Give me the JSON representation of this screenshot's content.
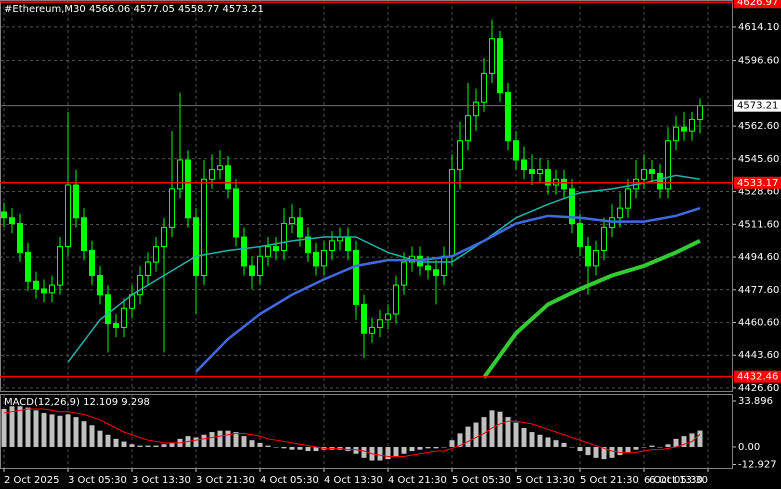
{
  "chart_data": {
    "type": "candlestick",
    "header": "#Ethereum,M30  4566.06 4577.05 4558.77 4573.21",
    "candle_color": "#00ff00",
    "open": [
      4518,
      4515,
      4512,
      4497,
      4482,
      4478,
      4476,
      4480,
      4500,
      4532,
      4515,
      4498,
      4485,
      4475,
      4460,
      4458,
      4468,
      4475,
      4485,
      4492,
      4500,
      4510,
      4530,
      4545,
      4515,
      4485,
      4535,
      4540,
      4542,
      4530,
      4505,
      4490,
      4485,
      4495,
      4500,
      4498,
      4512,
      4515,
      4505,
      4497,
      4490,
      4498,
      4503,
      4505,
      4498,
      4470,
      4455,
      4458,
      4462,
      4465,
      4480,
      4492,
      4495,
      4490,
      4488,
      4485,
      4495,
      4540,
      4555,
      4568,
      4575,
      4590,
      4608,
      4580,
      4555,
      4545,
      4540,
      4538,
      4540,
      4532,
      4535,
      4530,
      4512,
      4500,
      4490,
      4498,
      4510,
      4515,
      4520,
      4530,
      4535,
      4540,
      4538,
      4530,
      4555,
      4562,
      4560,
      4566.06
    ],
    "high": [
      4523,
      4520,
      4517,
      4502,
      4487,
      4483,
      4485,
      4505,
      4570,
      4540,
      4520,
      4503,
      4490,
      4480,
      4465,
      4473,
      4480,
      4490,
      4497,
      4505,
      4515,
      4560,
      4580,
      4550,
      4520,
      4545,
      4548,
      4550,
      4547,
      4535,
      4510,
      4495,
      4500,
      4505,
      4505,
      4520,
      4522,
      4520,
      4510,
      4502,
      4503,
      4508,
      4510,
      4510,
      4503,
      4475,
      4463,
      4467,
      4470,
      4485,
      4497,
      4500,
      4500,
      4495,
      4493,
      4500,
      4548,
      4565,
      4585,
      4582,
      4598,
      4618,
      4612,
      4585,
      4560,
      4552,
      4548,
      4546,
      4545,
      4540,
      4540,
      4535,
      4517,
      4505,
      4503,
      4515,
      4522,
      4528,
      4535,
      4545,
      4548,
      4545,
      4543,
      4562,
      4568,
      4570,
      4570,
      4577.05
    ],
    "low": [
      4510,
      4507,
      4492,
      4477,
      4473,
      4471,
      4471,
      4475,
      4495,
      4510,
      4493,
      4480,
      4470,
      4445,
      4453,
      4453,
      4463,
      4470,
      4480,
      4487,
      4445,
      4505,
      4525,
      4510,
      4465,
      4480,
      4530,
      4535,
      4525,
      4500,
      4485,
      4478,
      4480,
      4490,
      4493,
      4493,
      4507,
      4500,
      4492,
      4485,
      4485,
      4493,
      4498,
      4493,
      4462,
      4442,
      4450,
      4453,
      4457,
      4460,
      4475,
      4487,
      4485,
      4483,
      4470,
      4480,
      4490,
      4530,
      4550,
      4560,
      4570,
      4585,
      4575,
      4550,
      4540,
      4535,
      4532,
      4533,
      4527,
      4527,
      4525,
      4507,
      4495,
      4475,
      4485,
      4493,
      4505,
      4510,
      4515,
      4525,
      4530,
      4533,
      4525,
      4525,
      4550,
      4555,
      4555,
      4558.77
    ],
    "close": [
      4515,
      4512,
      4497,
      4482,
      4478,
      4476,
      4480,
      4500,
      4532,
      4515,
      4498,
      4485,
      4475,
      4460,
      4458,
      4468,
      4475,
      4485,
      4492,
      4500,
      4510,
      4530,
      4545,
      4515,
      4485,
      4535,
      4540,
      4542,
      4530,
      4505,
      4490,
      4485,
      4495,
      4500,
      4498,
      4512,
      4515,
      4505,
      4497,
      4490,
      4498,
      4503,
      4505,
      4498,
      4470,
      4455,
      4458,
      4462,
      4465,
      4480,
      4492,
      4495,
      4490,
      4488,
      4485,
      4495,
      4540,
      4555,
      4568,
      4575,
      4590,
      4608,
      4580,
      4555,
      4545,
      4540,
      4538,
      4540,
      4532,
      4535,
      4530,
      4512,
      4500,
      4490,
      4498,
      4510,
      4515,
      4520,
      4530,
      4535,
      4540,
      4538,
      4530,
      4555,
      4562,
      4560,
      4566.06,
      4573.21
    ],
    "moving_averages": [
      {
        "color": "#20b2aa",
        "x": [
          8,
          12,
          16,
          20,
          24,
          28,
          32,
          36,
          40,
          44,
          48,
          52,
          56,
          60,
          64,
          68,
          72,
          76,
          80,
          84,
          87
        ],
        "values": [
          4440,
          4462,
          4475,
          4485,
          4495,
          4498,
          4500,
          4503,
          4505,
          4505,
          4497,
          4492,
          4492,
          4503,
          4515,
          4522,
          4528,
          4530,
          4533,
          4537,
          4535
        ]
      },
      {
        "color": "#4169e1",
        "x": [
          24,
          28,
          32,
          36,
          40,
          44,
          48,
          52,
          56,
          60,
          64,
          68,
          72,
          76,
          80,
          84,
          87
        ],
        "values": [
          4435,
          4452,
          4465,
          4475,
          4483,
          4490,
          4493,
          4493,
          4495,
          4503,
          4512,
          4516,
          4515,
          4513,
          4513,
          4516,
          4520
        ]
      },
      {
        "color": "#32cd32",
        "x": [
          60,
          64,
          68,
          72,
          76,
          80,
          84,
          87
        ],
        "values": [
          4432,
          4455,
          4470,
          4478,
          4485,
          4490,
          4497,
          4503
        ]
      }
    ],
    "hlines": [
      {
        "value": 4626.97,
        "label": "4626.97"
      },
      {
        "value": 4533.17,
        "label": "4533.17"
      },
      {
        "value": 4432.46,
        "label": "4432.46"
      }
    ],
    "hline_color": "#ff0000",
    "ylim": [
      4424.5,
      4628.1
    ],
    "yticks": [
      {
        "value": 4614.1,
        "label": "4614.10"
      },
      {
        "value": 4596.6,
        "label": "4596.60"
      },
      {
        "value": 4562.6,
        "label": "4562.60"
      },
      {
        "value": 4545.6,
        "label": "4545.60"
      },
      {
        "value": 4528.6,
        "label": "4528.60"
      },
      {
        "value": 4511.6,
        "label": "4511.60"
      },
      {
        "value": 4494.6,
        "label": "4494.60"
      },
      {
        "value": 4477.6,
        "label": "4477.60"
      },
      {
        "value": 4460.6,
        "label": "4460.60"
      },
      {
        "value": 4443.6,
        "label": "4443.60"
      },
      {
        "value": 4426.6,
        "label": "4426.60"
      }
    ],
    "xlim": [
      -0.5,
      91.125
    ],
    "xticks": [
      {
        "value": 0,
        "label": "2 Oct 2025"
      },
      {
        "value": 8,
        "label": "3 Oct 05:30"
      },
      {
        "value": 16,
        "label": "3 Oct 13:30"
      },
      {
        "value": 24,
        "label": "3 Oct 21:30"
      },
      {
        "value": 32,
        "label": "4 Oct 05:30"
      },
      {
        "value": 40,
        "label": "4 Oct 13:30"
      },
      {
        "value": 48,
        "label": "4 Oct 21:30"
      },
      {
        "value": 56,
        "label": "5 Oct 05:30"
      },
      {
        "value": 64,
        "label": "5 Oct 13:30"
      },
      {
        "value": 72,
        "label": "5 Oct 21:30"
      },
      {
        "value": 80,
        "label": "6 Oct 05:30"
      },
      {
        "value": 88,
        "label": "6 Oct 13:30"
      }
    ],
    "grid": true,
    "macd": {
      "label": "MACD(12,26,9) 12.109 9.298",
      "hist_color": "#c0c0c0",
      "signal_color": "#ff0000",
      "histogram": [
        28,
        30,
        30,
        29,
        27,
        25,
        24,
        23,
        24,
        22,
        19,
        16,
        12,
        9,
        6,
        4,
        2,
        1,
        1,
        1,
        2,
        3,
        6,
        8,
        7,
        9,
        11,
        12,
        12,
        11,
        8,
        5,
        3,
        1,
        0,
        -1,
        -2,
        -2,
        -3,
        -3,
        -2,
        -2,
        -2,
        -3,
        -5,
        -8,
        -10,
        -10,
        -9,
        -7,
        -5,
        -3,
        -2,
        -1,
        -1,
        0,
        5,
        10,
        15,
        18,
        22,
        27,
        26,
        22,
        18,
        14,
        11,
        9,
        7,
        5,
        3,
        0,
        -3,
        -6,
        -8,
        -9,
        -8,
        -6,
        -4,
        -2,
        0,
        1,
        0,
        2,
        6,
        8,
        10,
        12.109
      ],
      "signal": [
        25,
        26,
        27,
        28,
        28,
        28,
        27,
        26,
        26,
        25,
        24,
        22,
        20,
        17,
        14,
        11,
        9,
        7,
        5,
        4,
        3,
        3,
        3,
        4,
        5,
        6,
        7,
        8,
        9,
        10,
        10,
        9,
        8,
        6,
        5,
        4,
        3,
        2,
        1,
        0,
        -1,
        -1,
        -1,
        -2,
        -2,
        -3,
        -5,
        -6,
        -7,
        -7,
        -7,
        -6,
        -5,
        -4,
        -3,
        -3,
        -1,
        1,
        4,
        7,
        10,
        14,
        17,
        19,
        19,
        18,
        17,
        15,
        13,
        11,
        9,
        7,
        5,
        3,
        1,
        -1,
        -3,
        -4,
        -4,
        -4,
        -3,
        -2,
        -2,
        -1,
        0,
        2,
        4,
        9.298
      ],
      "ylim": [
        -15.5,
        38.3
      ],
      "yticks": [
        33.896,
        {
          "value": 0,
          "label": "0.00"
        },
        -12.927
      ]
    }
  }
}
